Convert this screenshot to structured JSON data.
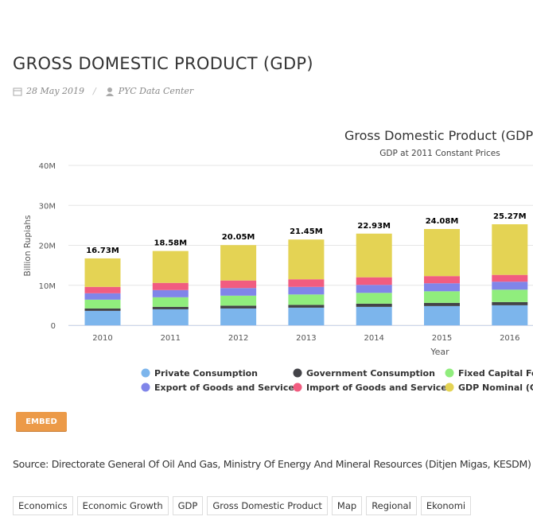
{
  "header": {
    "title": "GROSS DOMESTIC PRODUCT (GDP)",
    "date": "28 May 2019",
    "author": "PYC Data Center"
  },
  "chart_data": {
    "type": "stacked_bar",
    "title": "Gross Domestic Product (GDP",
    "subtitle": "GDP at 2011 Constant Prices",
    "x_label": "Year",
    "y_label": "Billion Rupiahs",
    "categories": [
      "2010",
      "2011",
      "2012",
      "2013",
      "2014",
      "2015",
      "2016"
    ],
    "series": [
      {
        "name": "Private Consumption",
        "color": "#7cb5ec",
        "values": [
          3.6,
          4.0,
          4.2,
          4.4,
          4.6,
          4.8,
          5.0
        ]
      },
      {
        "name": "Government Consumption",
        "color": "#434348",
        "values": [
          0.6,
          0.6,
          0.7,
          0.7,
          0.8,
          0.8,
          0.8
        ]
      },
      {
        "name": "Fixed Capital For",
        "color": "#90ed7d",
        "values": [
          2.2,
          2.4,
          2.5,
          2.6,
          2.7,
          2.9,
          3.1
        ]
      },
      {
        "name": "Export of Goods and Services",
        "color": "#8085e9",
        "values": [
          1.6,
          1.8,
          1.9,
          1.9,
          2.0,
          2.0,
          2.0
        ]
      },
      {
        "name": "Import of Goods and Services",
        "color": "#f15c80",
        "values": [
          1.6,
          1.8,
          1.9,
          1.9,
          1.9,
          1.8,
          1.7
        ]
      },
      {
        "name": "GDP Nominal (Cur",
        "color": "#e4d354",
        "values": [
          7.13,
          7.98,
          8.85,
          9.95,
          10.93,
          11.78,
          12.67
        ]
      }
    ],
    "totals": {
      "values": [
        16.73,
        18.58,
        20.05,
        21.45,
        22.93,
        24.08,
        25.27
      ],
      "value_labels": [
        "16.73M",
        "18.58M",
        "20.05M",
        "21.45M",
        "22.93M",
        "24.08M",
        "25.27M"
      ]
    },
    "ylim": [
      0,
      40
    ],
    "yticks": [
      0,
      {
        "value": 10,
        "label": "10M"
      },
      {
        "value": 20,
        "label": "20M"
      },
      {
        "value": 30,
        "label": "30M"
      },
      {
        "value": 40,
        "label": "40M"
      }
    ],
    "grid": true,
    "legend": "bottom"
  },
  "embed_label": "EMBED",
  "source": "Source: Directorate General Of Oil And Gas, Ministry Of Energy And Mineral Resources (Ditjen Migas, KESDM)",
  "tags": [
    "Economics",
    "Economic Growth",
    "GDP",
    "Gross Domestic Product",
    "Map",
    "Regional",
    "Ekonomi"
  ]
}
